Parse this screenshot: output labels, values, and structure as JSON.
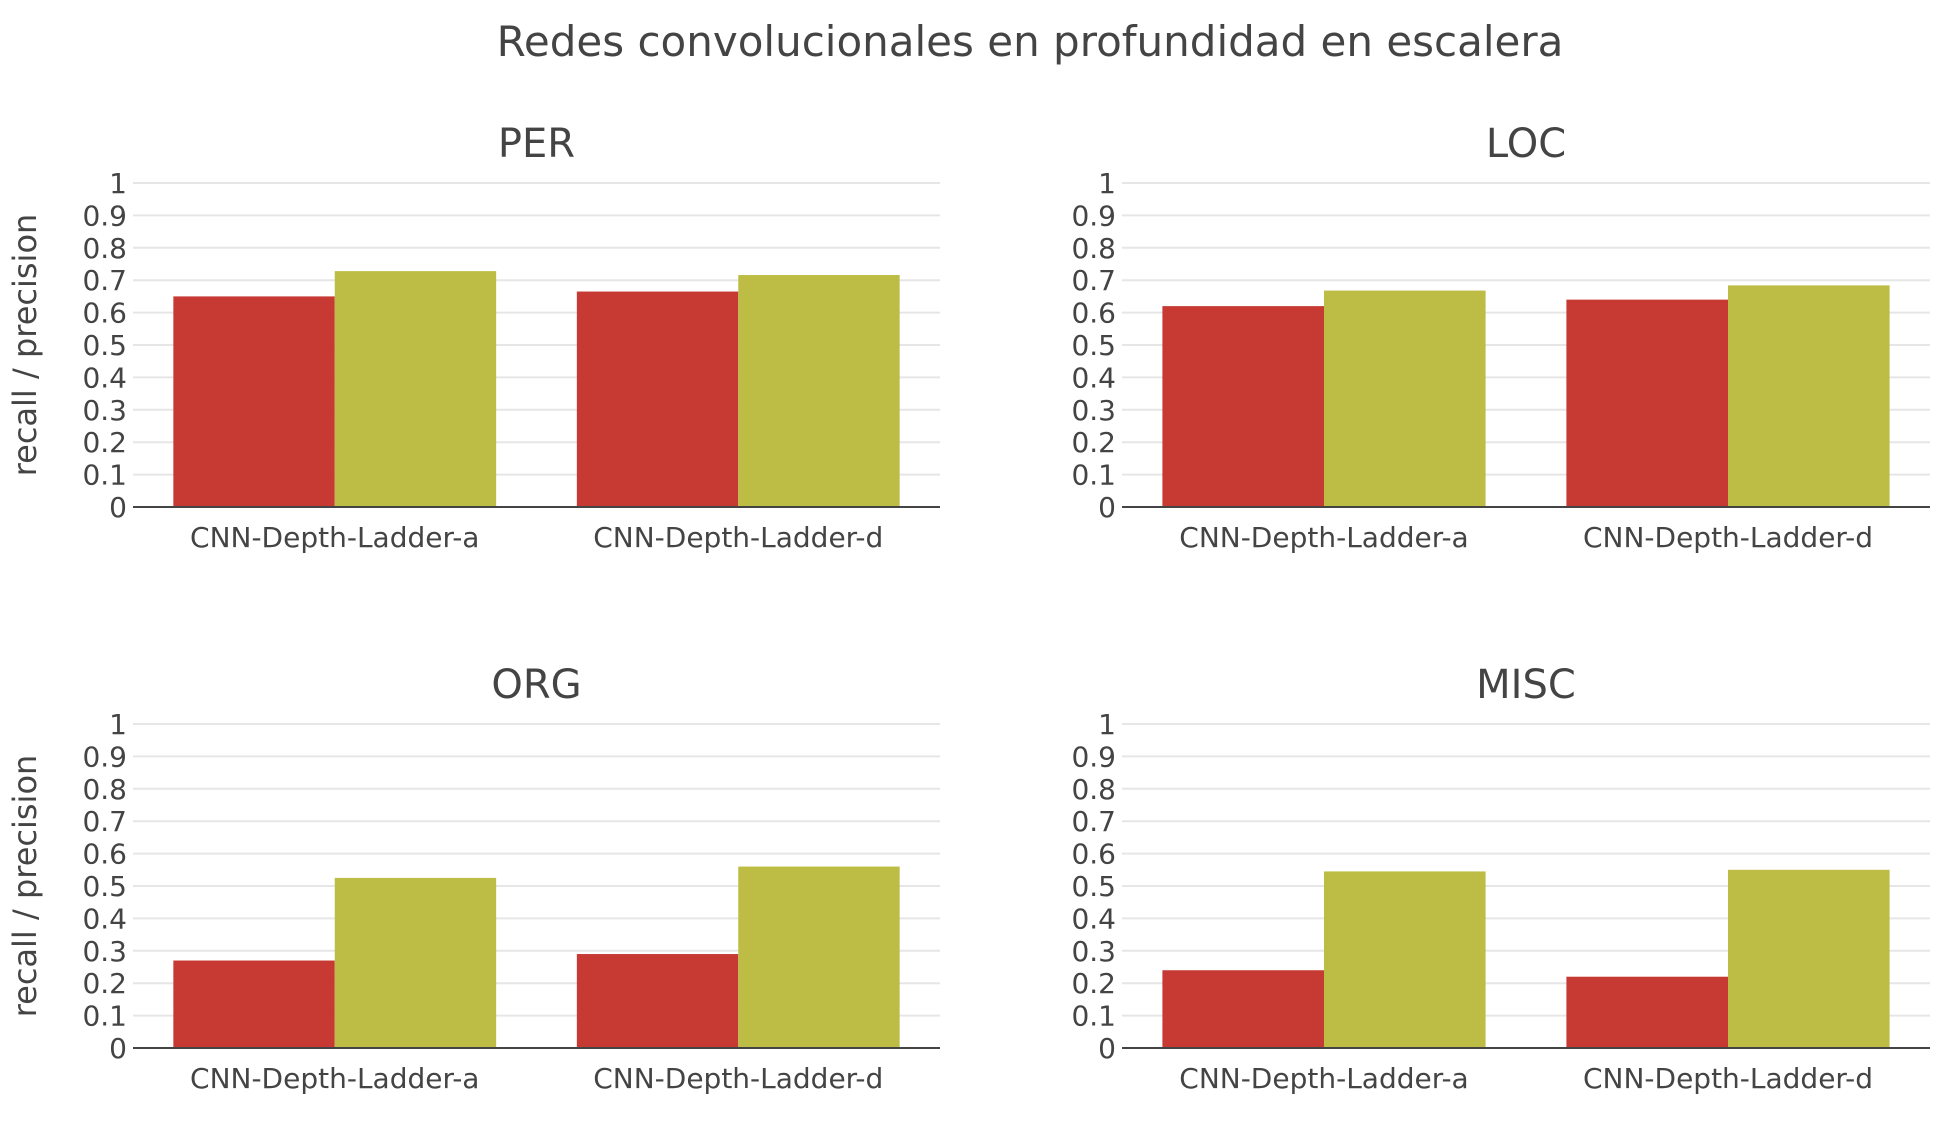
{
  "title": "Redes convolucionales en profundidad en escalera",
  "colors": {
    "bar_a": "#c63a33",
    "bar_b": "#bdbd46",
    "text": "#444444",
    "grid": "#e6e6e6"
  },
  "chart_data": [
    {
      "type": "bar",
      "title": "PER",
      "ylabel": "recall / precision",
      "categories": [
        "CNN-Depth-Ladder-a",
        "CNN-Depth-Ladder-d"
      ],
      "ylim": [
        0,
        1
      ],
      "yticks": [
        "0",
        "0.1",
        "0.2",
        "0.3",
        "0.4",
        "0.5",
        "0.6",
        "0.7",
        "0.8",
        "0.9",
        "1"
      ],
      "grid": true,
      "series": [
        {
          "values": [
            0.65,
            0.665
          ],
          "color": "#c63a33"
        },
        {
          "values": [
            0.728,
            0.716
          ],
          "color": "#bdbd46"
        }
      ]
    },
    {
      "type": "bar",
      "title": "LOC",
      "ylabel": "",
      "categories": [
        "CNN-Depth-Ladder-a",
        "CNN-Depth-Ladder-d"
      ],
      "ylim": [
        0,
        1
      ],
      "yticks": [
        "0",
        "0.1",
        "0.2",
        "0.3",
        "0.4",
        "0.5",
        "0.6",
        "0.7",
        "0.8",
        "0.9",
        "1"
      ],
      "grid": true,
      "series": [
        {
          "values": [
            0.62,
            0.64
          ],
          "color": "#c63a33"
        },
        {
          "values": [
            0.668,
            0.684
          ],
          "color": "#bdbd46"
        }
      ]
    },
    {
      "type": "bar",
      "title": "ORG",
      "ylabel": "recall / precision",
      "categories": [
        "CNN-Depth-Ladder-a",
        "CNN-Depth-Ladder-d"
      ],
      "ylim": [
        0,
        1
      ],
      "yticks": [
        "0",
        "0.1",
        "0.2",
        "0.3",
        "0.4",
        "0.5",
        "0.6",
        "0.7",
        "0.8",
        "0.9",
        "1"
      ],
      "grid": true,
      "series": [
        {
          "values": [
            0.27,
            0.29
          ],
          "color": "#c63a33"
        },
        {
          "values": [
            0.525,
            0.56
          ],
          "color": "#bdbd46"
        }
      ]
    },
    {
      "type": "bar",
      "title": "MISC",
      "ylabel": "",
      "categories": [
        "CNN-Depth-Ladder-a",
        "CNN-Depth-Ladder-d"
      ],
      "ylim": [
        0,
        1
      ],
      "yticks": [
        "0",
        "0.1",
        "0.2",
        "0.3",
        "0.4",
        "0.5",
        "0.6",
        "0.7",
        "0.8",
        "0.9",
        "1"
      ],
      "grid": true,
      "series": [
        {
          "values": [
            0.24,
            0.22
          ],
          "color": "#c63a33"
        },
        {
          "values": [
            0.545,
            0.55
          ],
          "color": "#bdbd46"
        }
      ]
    }
  ]
}
